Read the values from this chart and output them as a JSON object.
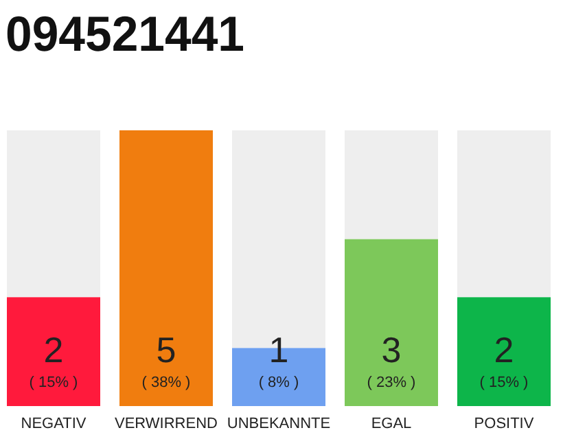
{
  "chart_data": {
    "type": "bar",
    "title": "094521441",
    "categories": [
      "NEGATIV",
      "VERWIRREND",
      "UNBEKANNTE",
      "EGAL",
      "POSITIV"
    ],
    "values": [
      15,
      38,
      8,
      23,
      15
    ],
    "colors": [
      "#ff1a3c",
      "#f07d0f",
      "#6ea0f0",
      "#7dc85a",
      "#0db54a"
    ],
    "value_labels": [
      "( 15% )",
      "( 38% )",
      "( 8% )",
      "( 23% )",
      "( 15% )"
    ],
    "annotations": [
      "2",
      "5",
      "1",
      "3",
      "2"
    ]
  }
}
